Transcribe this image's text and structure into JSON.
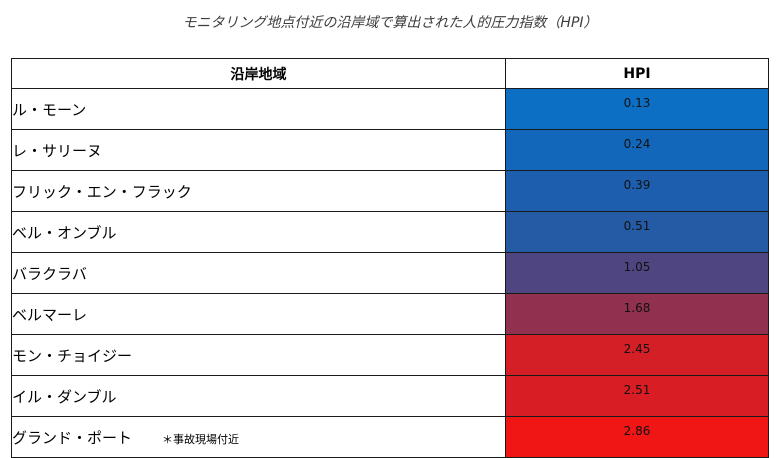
{
  "caption": "モニタリング地点付近の沿岸域で算出された人的圧力指数（HPI）",
  "table": {
    "headers": {
      "area": "沿岸地域",
      "hpi": "HPI"
    },
    "rows": [
      {
        "area": "ル・モーン",
        "hpi": "0.13",
        "color": "#0d6fc4"
      },
      {
        "area": "レ・サリーヌ",
        "hpi": "0.24",
        "color": "#1267bb"
      },
      {
        "area": "フリック・エン・フラック",
        "hpi": "0.39",
        "color": "#1d5fae"
      },
      {
        "area": "ベル・オンブル",
        "hpi": "0.51",
        "color": "#255aa4"
      },
      {
        "area": "バラクラバ",
        "hpi": "1.05",
        "color": "#4f4681"
      },
      {
        "area": "ベルマーレ",
        "hpi": "1.68",
        "color": "#91304f"
      },
      {
        "area": "モン・チョイジー",
        "hpi": "2.45",
        "color": "#d41f26"
      },
      {
        "area": "イル・ダンブル",
        "hpi": "2.51",
        "color": "#d81d24"
      },
      {
        "area": "グランド・ポート",
        "hpi": "2.86",
        "color": "#f01616",
        "note": "＊事故現場付近"
      }
    ]
  }
}
